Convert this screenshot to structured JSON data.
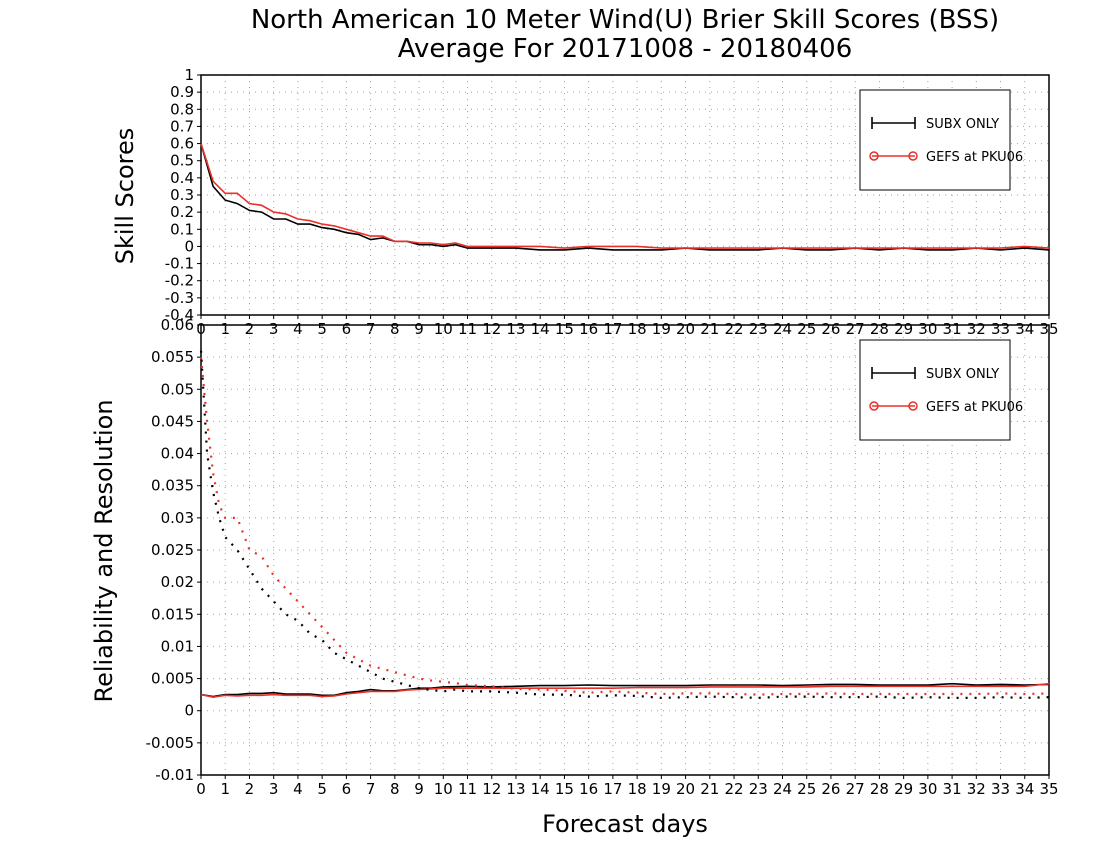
{
  "title_line1": "North American 10 Meter Wind(U) Brier Skill Scores (BSS)",
  "title_line2": "Average For 20171008 - 20180406",
  "colors": {
    "subx": "#000000",
    "gefs": "#e8312a",
    "grid": "#a0a0a0"
  },
  "chart_data": [
    {
      "type": "line",
      "ylabel": "Skill Scores",
      "xlabel": "",
      "xlim": [
        0,
        35
      ],
      "ylim": [
        -0.4,
        1
      ],
      "yticks": [
        "1",
        "0.9",
        "0.8",
        "0.7",
        "0.6",
        "0.5",
        "0.4",
        "0.3",
        "0.2",
        "0.1",
        "0",
        "-0.1",
        "-0.2",
        "-0.3",
        "-0.4"
      ],
      "xticks": [
        "0",
        "1",
        "2",
        "3",
        "4",
        "5",
        "6",
        "7",
        "8",
        "9",
        "10",
        "11",
        "12",
        "13",
        "14",
        "15",
        "16",
        "17",
        "18",
        "19",
        "20",
        "21",
        "22",
        "23",
        "24",
        "25",
        "26",
        "27",
        "28",
        "29",
        "30",
        "31",
        "32",
        "33",
        "34",
        "35"
      ],
      "grid": true,
      "legend_position": "top-right",
      "series": [
        {
          "name": "SUBX ONLY",
          "style": "solid",
          "color": "#000000",
          "marker": "plus",
          "x": [
            0,
            0.5,
            1,
            1.5,
            2,
            2.5,
            3,
            3.5,
            4,
            4.5,
            5,
            5.5,
            6,
            6.5,
            7,
            7.5,
            8,
            8.5,
            9,
            9.5,
            10,
            10.5,
            11,
            12,
            13,
            14,
            15,
            16,
            17,
            18,
            19,
            20,
            21,
            22,
            23,
            24,
            25,
            26,
            27,
            28,
            29,
            30,
            31,
            32,
            33,
            34,
            35
          ],
          "y": [
            0.6,
            0.35,
            0.27,
            0.25,
            0.21,
            0.2,
            0.16,
            0.16,
            0.13,
            0.13,
            0.11,
            0.1,
            0.08,
            0.07,
            0.04,
            0.05,
            0.03,
            0.03,
            0.01,
            0.01,
            0.0,
            0.01,
            -0.01,
            -0.01,
            -0.01,
            -0.02,
            -0.02,
            -0.01,
            -0.02,
            -0.02,
            -0.02,
            -0.01,
            -0.02,
            -0.02,
            -0.02,
            -0.01,
            -0.02,
            -0.02,
            -0.01,
            -0.02,
            -0.01,
            -0.02,
            -0.02,
            -0.01,
            -0.02,
            -0.01,
            -0.02
          ]
        },
        {
          "name": "GEFS at PKU06",
          "style": "solid",
          "color": "#e8312a",
          "marker": "circle",
          "x": [
            0,
            0.5,
            1,
            1.5,
            2,
            2.5,
            3,
            3.5,
            4,
            4.5,
            5,
            5.5,
            6,
            6.5,
            7,
            7.5,
            8,
            8.5,
            9,
            9.5,
            10,
            10.5,
            11,
            12,
            13,
            14,
            15,
            16,
            17,
            18,
            19,
            20,
            21,
            22,
            23,
            24,
            25,
            26,
            27,
            28,
            29,
            30,
            31,
            32,
            33,
            34,
            35
          ],
          "y": [
            0.6,
            0.38,
            0.31,
            0.31,
            0.25,
            0.24,
            0.2,
            0.19,
            0.16,
            0.15,
            0.13,
            0.12,
            0.1,
            0.08,
            0.06,
            0.06,
            0.03,
            0.03,
            0.02,
            0.02,
            0.01,
            0.02,
            0.0,
            0.0,
            0.0,
            0.0,
            -0.01,
            0.0,
            0.0,
            0.0,
            -0.01,
            -0.01,
            -0.01,
            -0.01,
            -0.01,
            -0.01,
            -0.01,
            -0.01,
            -0.01,
            -0.01,
            -0.01,
            -0.01,
            -0.01,
            -0.01,
            -0.01,
            0.0,
            -0.01
          ]
        }
      ]
    },
    {
      "type": "line",
      "ylabel": "Reliability and Resolution",
      "xlabel": "Forecast days",
      "xlim": [
        0,
        35
      ],
      "ylim": [
        -0.01,
        0.06
      ],
      "yticks": [
        "0.06",
        "0.055",
        "0.05",
        "0.045",
        "0.04",
        "0.035",
        "0.03",
        "0.025",
        "0.02",
        "0.015",
        "0.01",
        "0.005",
        "0",
        "-0.005",
        "-0.01"
      ],
      "xticks": [
        "0",
        "1",
        "2",
        "3",
        "4",
        "5",
        "6",
        "7",
        "8",
        "9",
        "10",
        "11",
        "12",
        "13",
        "14",
        "15",
        "16",
        "17",
        "18",
        "19",
        "20",
        "21",
        "22",
        "23",
        "24",
        "25",
        "26",
        "27",
        "28",
        "29",
        "30",
        "31",
        "32",
        "33",
        "34",
        "35"
      ],
      "grid": true,
      "legend_position": "top-right",
      "series": [
        {
          "name": "SUBX ONLY",
          "color": "#000000",
          "style": "solid",
          "x": [
            0,
            0.5,
            1,
            1.5,
            2,
            2.5,
            3,
            3.5,
            4,
            4.5,
            5,
            5.5,
            6,
            6.5,
            7,
            7.5,
            8,
            8.5,
            9,
            9.5,
            10,
            11,
            12,
            13,
            14,
            15,
            16,
            17,
            18,
            19,
            20,
            21,
            22,
            23,
            24,
            25,
            26,
            27,
            28,
            29,
            30,
            31,
            32,
            33,
            34,
            35
          ],
          "y": [
            0.0025,
            0.0022,
            0.0025,
            0.0025,
            0.0027,
            0.0027,
            0.0028,
            0.0026,
            0.0026,
            0.0026,
            0.0024,
            0.0024,
            0.0028,
            0.003,
            0.0033,
            0.0031,
            0.0031,
            0.0033,
            0.0035,
            0.0035,
            0.0037,
            0.0038,
            0.0037,
            0.0038,
            0.0039,
            0.0039,
            0.004,
            0.0039,
            0.0039,
            0.0039,
            0.0039,
            0.004,
            0.004,
            0.004,
            0.0039,
            0.004,
            0.0041,
            0.0041,
            0.004,
            0.004,
            0.004,
            0.0042,
            0.004,
            0.0041,
            0.004,
            0.0041
          ]
        },
        {
          "name": "GEFS at PKU06",
          "color": "#e8312a",
          "style": "solid",
          "x": [
            0,
            0.5,
            1,
            1.5,
            2,
            2.5,
            3,
            3.5,
            4,
            4.5,
            5,
            5.5,
            6,
            6.5,
            7,
            7.5,
            8,
            8.5,
            9,
            9.5,
            10,
            11,
            12,
            13,
            14,
            15,
            16,
            17,
            18,
            19,
            20,
            21,
            22,
            23,
            24,
            25,
            26,
            27,
            28,
            29,
            30,
            31,
            32,
            33,
            34,
            35
          ],
          "y": [
            0.0025,
            0.0021,
            0.0024,
            0.0023,
            0.0024,
            0.0024,
            0.0025,
            0.0024,
            0.0024,
            0.0024,
            0.0022,
            0.0023,
            0.0026,
            0.0028,
            0.003,
            0.003,
            0.003,
            0.0032,
            0.0033,
            0.0034,
            0.0035,
            0.0035,
            0.0035,
            0.0035,
            0.0035,
            0.0035,
            0.0035,
            0.0035,
            0.0036,
            0.0036,
            0.0036,
            0.0037,
            0.0037,
            0.0037,
            0.0037,
            0.0037,
            0.0038,
            0.0038,
            0.0038,
            0.0038,
            0.0038,
            0.0038,
            0.0038,
            0.0038,
            0.0038,
            0.0042
          ]
        },
        {
          "name": "",
          "color": "#000000",
          "style": "dotted",
          "x": [
            0,
            0.25,
            0.5,
            0.75,
            1,
            1.5,
            2,
            2.5,
            3,
            3.5,
            4,
            4.5,
            5,
            5.5,
            6,
            6.5,
            7,
            7.5,
            8,
            8.5,
            9,
            9.5,
            10,
            10.5,
            11,
            12,
            13,
            14,
            15,
            16,
            17,
            18,
            19,
            20,
            21,
            22,
            23,
            24,
            25,
            26,
            27,
            28,
            29,
            30,
            31,
            32,
            33,
            34,
            35
          ],
          "y": [
            0.056,
            0.04,
            0.034,
            0.03,
            0.027,
            0.025,
            0.022,
            0.019,
            0.017,
            0.015,
            0.014,
            0.012,
            0.011,
            0.009,
            0.008,
            0.007,
            0.006,
            0.005,
            0.0045,
            0.004,
            0.0035,
            0.0032,
            0.003,
            0.0033,
            0.003,
            0.003,
            0.0028,
            0.0025,
            0.0025,
            0.0022,
            0.0024,
            0.0023,
            0.002,
            0.0021,
            0.0022,
            0.0021,
            0.002,
            0.0022,
            0.0022,
            0.0021,
            0.0021,
            0.0022,
            0.002,
            0.0021,
            0.002,
            0.002,
            0.0021,
            0.002,
            0.0021
          ]
        },
        {
          "name": "",
          "color": "#e8312a",
          "style": "dotted",
          "x": [
            0,
            0.25,
            0.5,
            0.75,
            1,
            1.5,
            2,
            2.5,
            3,
            3.5,
            4,
            4.5,
            5,
            5.5,
            6,
            6.5,
            7,
            7.5,
            8,
            8.5,
            9,
            9.5,
            10,
            10.5,
            11,
            12,
            13,
            14,
            15,
            16,
            17,
            18,
            19,
            20,
            21,
            22,
            23,
            24,
            25,
            26,
            27,
            28,
            29,
            30,
            31,
            32,
            33,
            34,
            35
          ],
          "y": [
            0.055,
            0.045,
            0.037,
            0.032,
            0.03,
            0.03,
            0.025,
            0.024,
            0.021,
            0.019,
            0.017,
            0.015,
            0.013,
            0.011,
            0.009,
            0.008,
            0.007,
            0.0065,
            0.006,
            0.0055,
            0.005,
            0.0047,
            0.0045,
            0.0043,
            0.004,
            0.0038,
            0.0034,
            0.0033,
            0.0031,
            0.0028,
            0.003,
            0.0028,
            0.0026,
            0.0027,
            0.0027,
            0.0026,
            0.0025,
            0.0026,
            0.0026,
            0.0027,
            0.0026,
            0.0026,
            0.0026,
            0.0026,
            0.0026,
            0.0026,
            0.0027,
            0.0026,
            0.0027
          ]
        }
      ]
    }
  ],
  "legend": [
    {
      "label": "SUBX ONLY",
      "marker": "plus",
      "color": "#000000"
    },
    {
      "label": "GEFS at PKU06",
      "marker": "circle",
      "color": "#e8312a"
    }
  ]
}
